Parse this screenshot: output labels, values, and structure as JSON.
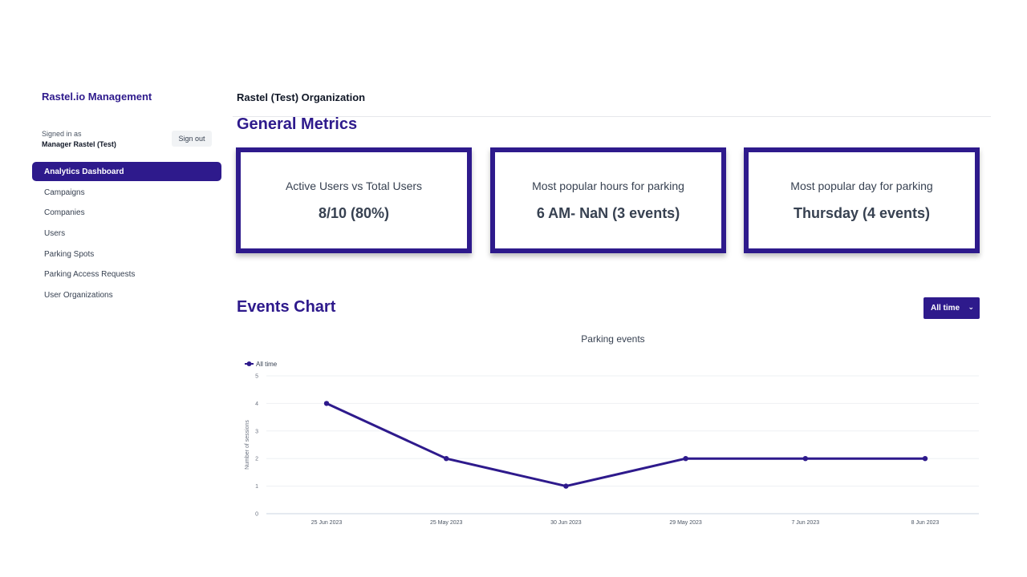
{
  "app_title": "Rastel.io Management",
  "org_title": "Rastel (Test) Organization",
  "user": {
    "signed_in_label": "Signed in as",
    "name": "Manager Rastel (Test)",
    "sign_out": "Sign out"
  },
  "nav": [
    {
      "label": "Analytics Dashboard",
      "active": true
    },
    {
      "label": "Campaigns"
    },
    {
      "label": "Companies"
    },
    {
      "label": "Users"
    },
    {
      "label": "Parking Spots"
    },
    {
      "label": "Parking Access Requests"
    },
    {
      "label": "User Organizations"
    }
  ],
  "metrics": {
    "title": "General Metrics",
    "cards": [
      {
        "label": "Active Users vs Total Users",
        "value": "8/10 (80%)"
      },
      {
        "label": "Most popular hours for parking",
        "value": "6 AM- NaN (3 events)"
      },
      {
        "label": "Most popular day for parking",
        "value": "Thursday (4 events)"
      }
    ]
  },
  "events": {
    "title": "Events Chart",
    "range_label": "All time"
  },
  "colors": {
    "accent": "#2e1a8c"
  },
  "icons": {
    "range_chevron": "chevron-down-icon"
  },
  "chart_data": {
    "type": "line",
    "title": "Parking events",
    "xlabel": "",
    "ylabel": "Number of sessions",
    "categories": [
      "25 Jun 2023",
      "25 May 2023",
      "30 Jun 2023",
      "29 May 2023",
      "7 Jun 2023",
      "8 Jun 2023"
    ],
    "series": [
      {
        "name": "All time",
        "values": [
          4,
          2,
          1,
          2,
          2,
          2
        ]
      }
    ],
    "ylim": [
      0,
      5
    ],
    "yticks": [
      0,
      1,
      2,
      3,
      4,
      5
    ],
    "grid": true,
    "legend": "top-left"
  }
}
